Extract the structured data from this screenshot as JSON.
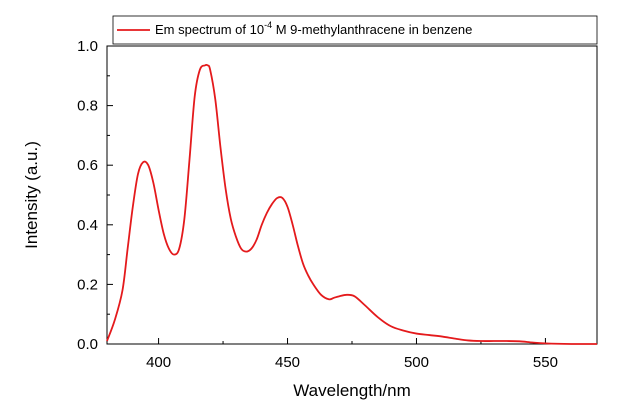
{
  "chart_data": {
    "type": "line",
    "xlabel": "Wavelength/nm",
    "ylabel": "Intensity (a.u.)",
    "xlim": [
      380,
      570
    ],
    "ylim": [
      0.0,
      1.0
    ],
    "xticks": [
      400,
      450,
      500,
      550
    ],
    "xtick_labels": [
      "400",
      "450",
      "500",
      "550"
    ],
    "yticks": [
      0.0,
      0.2,
      0.4,
      0.6,
      0.8,
      1.0
    ],
    "ytick_labels": [
      "0.0",
      "0.2",
      "0.4",
      "0.6",
      "0.8",
      "1.0"
    ],
    "grid": false,
    "legend_position": "top",
    "legend": {
      "prefix": "Em spectrum of 10",
      "superscript": "-4",
      "suffix": " M 9-methylanthracene in benzene"
    },
    "series": [
      {
        "name": "Em spectrum of 10-4 M 9-methylanthracene in benzene",
        "color": "#e41a1c",
        "x": [
          380,
          383,
          386,
          388,
          390,
          392,
          394,
          396,
          398,
          400,
          402,
          404,
          406,
          408,
          410,
          412,
          414,
          416,
          418,
          419,
          420,
          422,
          424,
          426,
          428,
          430,
          432,
          434,
          436,
          438,
          440,
          442,
          444,
          446,
          448,
          450,
          452,
          454,
          456,
          458,
          460,
          463,
          466,
          468,
          470,
          473,
          476,
          480,
          485,
          490,
          495,
          500,
          505,
          510,
          515,
          520,
          525,
          530,
          535,
          540,
          545,
          550,
          560,
          570
        ],
        "y": [
          0.01,
          0.08,
          0.18,
          0.32,
          0.46,
          0.57,
          0.61,
          0.6,
          0.54,
          0.45,
          0.37,
          0.32,
          0.3,
          0.32,
          0.42,
          0.62,
          0.83,
          0.92,
          0.935,
          0.935,
          0.92,
          0.82,
          0.66,
          0.52,
          0.42,
          0.36,
          0.32,
          0.31,
          0.32,
          0.35,
          0.4,
          0.44,
          0.47,
          0.49,
          0.49,
          0.46,
          0.4,
          0.33,
          0.27,
          0.23,
          0.2,
          0.165,
          0.15,
          0.155,
          0.16,
          0.165,
          0.16,
          0.13,
          0.09,
          0.06,
          0.045,
          0.035,
          0.03,
          0.025,
          0.018,
          0.012,
          0.01,
          0.01,
          0.01,
          0.009,
          0.005,
          0.002,
          0.0,
          0.0
        ]
      }
    ]
  }
}
